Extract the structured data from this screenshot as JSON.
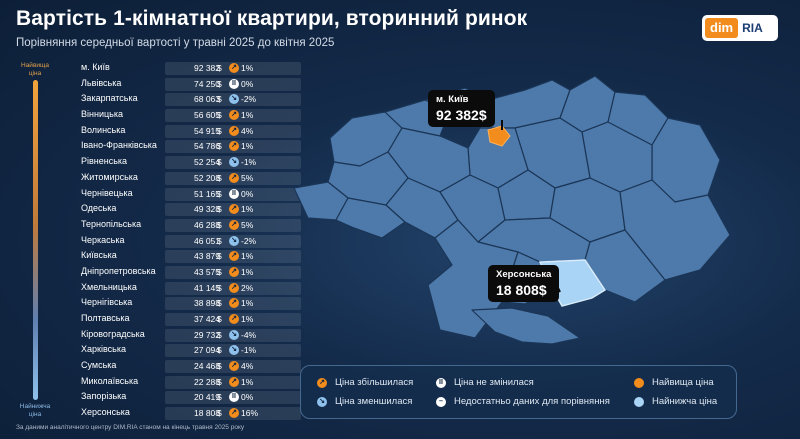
{
  "header": {
    "title": "Вартість 1-кімнатної квартири, вторинний ринок",
    "subtitle": "Порівняння середньої вартості у травні 2025 до квітня 2025"
  },
  "logo": {
    "left": "dim",
    "right": "RIA"
  },
  "scale": {
    "top": "Найвища ціна",
    "bottom": "Найнижча ціна"
  },
  "currency": "$",
  "chart_data": {
    "type": "table",
    "title": "Вартість 1-кімнатної квартири, вторинний ринок",
    "subtitle": "Порівняння середньої вартості у травні 2025 до квітня 2025",
    "rows": [
      {
        "region": "м. Київ",
        "price": "92 382",
        "value": 92382,
        "change": "1%",
        "trend": "up"
      },
      {
        "region": "Львівська",
        "price": "74 250",
        "value": 74250,
        "change": "0%",
        "trend": "same"
      },
      {
        "region": "Закарпатська",
        "price": "68 063",
        "value": 68063,
        "change": "-2%",
        "trend": "down"
      },
      {
        "region": "Вінницька",
        "price": "56 605",
        "value": 56605,
        "change": "1%",
        "trend": "up"
      },
      {
        "region": "Волинська",
        "price": "54 915",
        "value": 54915,
        "change": "4%",
        "trend": "up"
      },
      {
        "region": "Івано-Франківська",
        "price": "54 786",
        "value": 54786,
        "change": "1%",
        "trend": "up"
      },
      {
        "region": "Рівненська",
        "price": "52 254",
        "value": 52254,
        "change": "-1%",
        "trend": "down"
      },
      {
        "region": "Житомирська",
        "price": "52 208",
        "value": 52208,
        "change": "5%",
        "trend": "up"
      },
      {
        "region": "Чернівецька",
        "price": "51 165",
        "value": 51165,
        "change": "0%",
        "trend": "same"
      },
      {
        "region": "Одеська",
        "price": "49 328",
        "value": 49328,
        "change": "1%",
        "trend": "up"
      },
      {
        "region": "Тернопільська",
        "price": "46 288",
        "value": 46288,
        "change": "5%",
        "trend": "up"
      },
      {
        "region": "Черкаська",
        "price": "46 051",
        "value": 46051,
        "change": "-2%",
        "trend": "down"
      },
      {
        "region": "Київська",
        "price": "43 879",
        "value": 43879,
        "change": "1%",
        "trend": "up"
      },
      {
        "region": "Дніпропетровська",
        "price": "43 575",
        "value": 43575,
        "change": "1%",
        "trend": "up"
      },
      {
        "region": "Хмельницька",
        "price": "41 145",
        "value": 41145,
        "change": "2%",
        "trend": "up"
      },
      {
        "region": "Чернігівська",
        "price": "38 898",
        "value": 38898,
        "change": "1%",
        "trend": "up"
      },
      {
        "region": "Полтавська",
        "price": "37 424",
        "value": 37424,
        "change": "1%",
        "trend": "up"
      },
      {
        "region": "Кіровоградська",
        "price": "29 732",
        "value": 29732,
        "change": "-4%",
        "trend": "down"
      },
      {
        "region": "Харківська",
        "price": "27 094",
        "value": 27094,
        "change": "-1%",
        "trend": "down"
      },
      {
        "region": "Сумська",
        "price": "24 468",
        "value": 24468,
        "change": "4%",
        "trend": "up"
      },
      {
        "region": "Миколаївська",
        "price": "22 288",
        "value": 22288,
        "change": "1%",
        "trend": "up"
      },
      {
        "region": "Запорізька",
        "price": "20 419",
        "value": 20419,
        "change": "0%",
        "trend": "same"
      },
      {
        "region": "Херсонська",
        "price": "18 808",
        "value": 18808,
        "change": "16%",
        "trend": "up"
      }
    ]
  },
  "callouts": {
    "top": {
      "name": "м. Київ",
      "value": "92 382$"
    },
    "bottom": {
      "name": "Херсонська",
      "value": "18 808$"
    }
  },
  "legend": {
    "up": "Ціна збільшилася",
    "down": "Ціна зменшилася",
    "same": "Ціна не змінилася",
    "nodata": "Недостатньо даних для порівняння",
    "highest": "Найвища ціна",
    "lowest": "Найнижча ціна"
  },
  "colors": {
    "up": "#f28c1c",
    "down": "#8ec1ec",
    "same": "#ffffff",
    "highest": "#f28c1c",
    "lowest": "#a9d4f5",
    "region": "#4d7aab"
  },
  "footnote": "За даними аналітичного центру DIM.RIA станом на кінець травня 2025 року"
}
